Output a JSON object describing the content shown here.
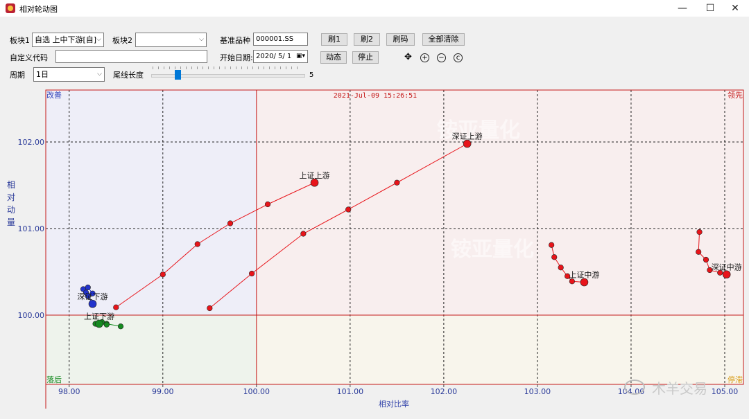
{
  "window": {
    "title": "相对轮动图",
    "minimize": "—",
    "maximize": "☐",
    "close": "✕"
  },
  "controls": {
    "block1_label": "板块1",
    "block1_value": "自选 上中下游[自]",
    "block2_label": "板块2",
    "block2_value": "",
    "base_label": "基准品种",
    "base_value": "000001.SS",
    "custom_code_label": "自定义代码",
    "custom_code_value": "",
    "start_date_label": "开始日期:",
    "start_date_value": "2020/ 5/ 1",
    "period_label": "周期",
    "period_value": "1日",
    "tail_label": "尾线长度",
    "tail_value": "5",
    "buttons": {
      "refresh1": "刷1",
      "refresh2": "刷2",
      "refresh_code": "刷码",
      "clear_all": "全部清除",
      "dynamic": "动态",
      "stop": "停止"
    },
    "icons": [
      "move-icon",
      "zoom-in-icon",
      "zoom-out-icon",
      "reset-icon"
    ]
  },
  "chart": {
    "timestamp": "2021-Jul-09 15:26:51",
    "quadrants": {
      "improving": "改善",
      "leading": "领先",
      "lagging": "落后",
      "weakening": "停滞"
    },
    "watermark": "铵亚量化",
    "colors": {
      "improving": "#eeeef8",
      "leading": "#f8eeee",
      "lagging": "#eef3ec",
      "weakening": "#f8f5ec",
      "axis": "#c41818",
      "red": "#e8141a",
      "blue": "#2233cc",
      "green": "#158a20"
    }
  },
  "chart_data": {
    "type": "scatter",
    "xlabel": "相对比率",
    "ylabel": "相对动量",
    "xlim": [
      97.75,
      105.2
    ],
    "ylim": [
      99.2,
      102.6
    ],
    "x_ticks": [
      "98.00",
      "99.00",
      "100.00",
      "101.00",
      "102.00",
      "103.00",
      "104.00",
      "105.00"
    ],
    "y_ticks": [
      "100.00",
      "101.00",
      "102.00"
    ],
    "series": [
      {
        "name": "深证上游",
        "color": "red",
        "points": [
          [
            99.5,
            100.08
          ],
          [
            99.95,
            100.48
          ],
          [
            100.5,
            100.94
          ],
          [
            100.98,
            101.22
          ],
          [
            101.5,
            101.53
          ],
          [
            102.25,
            101.98
          ]
        ]
      },
      {
        "name": "上证上游",
        "color": "red",
        "points": [
          [
            98.5,
            100.09
          ],
          [
            99.0,
            100.47
          ],
          [
            99.37,
            100.82
          ],
          [
            99.72,
            101.06
          ],
          [
            100.12,
            101.28
          ],
          [
            100.62,
            101.53
          ]
        ]
      },
      {
        "name": "上证中游",
        "color": "red",
        "points": [
          [
            103.15,
            100.81
          ],
          [
            103.18,
            100.67
          ],
          [
            103.25,
            100.55
          ],
          [
            103.32,
            100.45
          ],
          [
            103.37,
            100.39
          ],
          [
            103.5,
            100.38
          ]
        ]
      },
      {
        "name": "深证中游",
        "color": "red",
        "points": [
          [
            104.73,
            100.96
          ],
          [
            104.72,
            100.73
          ],
          [
            104.8,
            100.64
          ],
          [
            104.84,
            100.52
          ],
          [
            104.95,
            100.49
          ],
          [
            105.02,
            100.47
          ]
        ]
      },
      {
        "name": "深证下游",
        "color": "blue",
        "points": [
          [
            98.25,
            100.25
          ],
          [
            98.2,
            100.32
          ],
          [
            98.15,
            100.3
          ],
          [
            98.18,
            100.26
          ],
          [
            98.2,
            100.22
          ],
          [
            98.25,
            100.13
          ]
        ]
      },
      {
        "name": "上证下游",
        "color": "green",
        "points": [
          [
            98.55,
            99.87
          ],
          [
            98.4,
            99.9
          ],
          [
            98.28,
            99.9
          ],
          [
            98.35,
            99.92
          ],
          [
            98.4,
            99.89
          ],
          [
            98.32,
            99.9
          ]
        ]
      }
    ]
  },
  "footer": {
    "watermark_text": "木羊交易"
  }
}
